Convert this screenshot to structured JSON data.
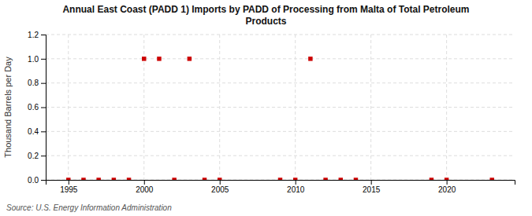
{
  "chart_data": {
    "type": "scatter",
    "title": "Annual East Coast (PADD 1) Imports by PADD of Processing from Malta of Total Petroleum\nProducts",
    "y_label": "Thousand Barrels per Day",
    "source": "Source: U.S. Energy Information Administration",
    "x": [
      1995,
      1996,
      1997,
      1998,
      1999,
      2000,
      2001,
      2002,
      2003,
      2004,
      2005,
      2009,
      2010,
      2011,
      2012,
      2013,
      2014,
      2019,
      2020,
      2023
    ],
    "values": [
      0,
      0,
      0,
      0,
      0,
      1,
      1,
      0,
      1,
      0,
      0,
      0,
      0,
      1,
      0,
      0,
      0,
      0,
      0,
      0
    ],
    "color": "#cc0000",
    "marker": "square",
    "xlim": [
      1993.5,
      2024.5
    ],
    "ylim": [
      0.0,
      1.2
    ],
    "xticks": [
      1995,
      2000,
      2005,
      2010,
      2015,
      2020
    ],
    "yticks": [
      {
        "value": 0,
        "label": "0.0"
      },
      0.2,
      0.4,
      0.6,
      0.8,
      {
        "value": 1,
        "label": "1.0"
      },
      1.2
    ],
    "grid": true
  }
}
